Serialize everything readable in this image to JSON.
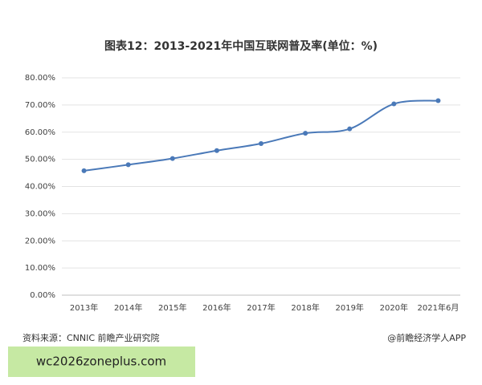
{
  "chart_data": {
    "type": "line",
    "title": "图表12：2013-2021年中国互联网普及率(单位：%)",
    "categories": [
      "2013年",
      "2014年",
      "2015年",
      "2016年",
      "2017年",
      "2018年",
      "2019年",
      "2020年",
      "2021年6月"
    ],
    "series": [
      {
        "name": "互联网普及率",
        "color": "#4a79b8",
        "values": [
          45.8,
          48.0,
          50.3,
          53.2,
          55.8,
          59.6,
          61.2,
          70.4,
          71.6
        ]
      }
    ],
    "ylim": [
      0,
      80
    ],
    "yticks": [
      {
        "value": 0,
        "label": "0.00%"
      },
      {
        "value": 10,
        "label": "10.00%"
      },
      {
        "value": 20,
        "label": "20.00%"
      },
      {
        "value": 30,
        "label": "30.00%"
      },
      {
        "value": 40,
        "label": "40.00%"
      },
      {
        "value": 50,
        "label": "50.00%"
      },
      {
        "value": 60,
        "label": "60.00%"
      },
      {
        "value": 70,
        "label": "70.00%"
      },
      {
        "value": 80,
        "label": "80.00%"
      }
    ],
    "grid": true,
    "source": "资料来源：CNNIC 前瞻产业研究院",
    "credit": "@前瞻经济学人APP"
  },
  "banner": "wc2026zoneplus.com"
}
